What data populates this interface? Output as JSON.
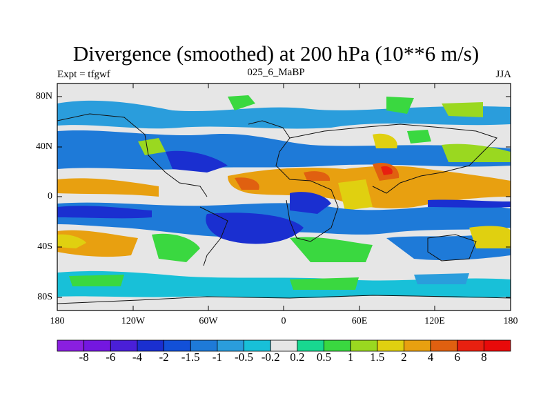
{
  "title": "Divergence (smoothed) at 200 hPa (10**6 m/s)",
  "subtitle_left": "Expt = tfgwf",
  "subtitle_center": "025_6_MaBP",
  "subtitle_right": "JJA",
  "y_ticks": [
    "80N",
    "40N",
    "0",
    "40S",
    "80S"
  ],
  "x_ticks": [
    "180",
    "120W",
    "60W",
    "0",
    "60E",
    "120E",
    "180"
  ],
  "colorbar": {
    "labels": [
      "-8",
      "-6",
      "-4",
      "-2",
      "-1.5",
      "-1",
      "-0.5",
      "-0.2",
      "0.2",
      "0.5",
      "1",
      "1.5",
      "2",
      "4",
      "6",
      "8"
    ],
    "colors": [
      "#8a1fe0",
      "#7417e0",
      "#4a1fd8",
      "#1a2fd0",
      "#1250d8",
      "#1e7ad8",
      "#2a9ddc",
      "#18c0d8",
      "#e6e6e6",
      "#18d890",
      "#3ad840",
      "#9ad820",
      "#e0d010",
      "#e8a010",
      "#e06010",
      "#e82010",
      "#e80a0a"
    ]
  },
  "chart_data": {
    "type": "filled-contour map",
    "title": "Divergence (smoothed) at 200 hPa (10**6 m/s)",
    "experiment": "tfgwf",
    "case": "025_6_MaBP",
    "season": "JJA",
    "lon_range": [
      -180,
      180
    ],
    "lat_range": [
      -90,
      90
    ],
    "contour_levels": [
      -8,
      -6,
      -4,
      -2,
      -1.5,
      -1,
      -0.5,
      -0.2,
      0.2,
      0.5,
      1,
      1.5,
      2,
      4,
      6,
      8
    ]
  }
}
